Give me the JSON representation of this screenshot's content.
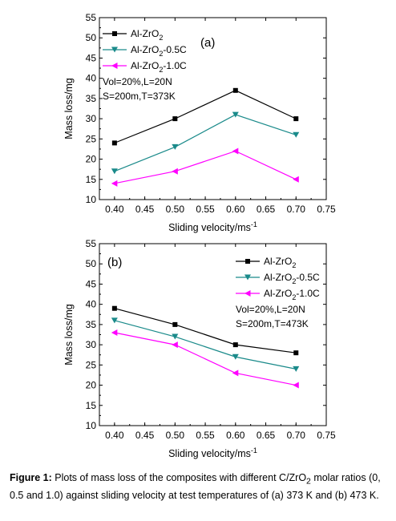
{
  "chart_data": [
    {
      "type": "line",
      "panel_label": "(a)",
      "xlabel_main": "Sliding velocity/ms",
      "xlabel_sup": "-1",
      "ylabel": "Mass loss/mg",
      "xlim": [
        0.375,
        0.75
      ],
      "ylim": [
        10,
        55
      ],
      "xticks": [
        "0.40",
        "0.45",
        "0.50",
        "0.55",
        "0.60",
        "0.65",
        "0.70",
        "0.75"
      ],
      "yticks": [
        "10",
        "15",
        "20",
        "25",
        "30",
        "35",
        "40",
        "45",
        "50",
        "55"
      ],
      "x": [
        0.4,
        0.5,
        0.6,
        0.7
      ],
      "series": [
        {
          "name_main": "Al-ZrO",
          "name_sub": "2",
          "name_tail": "",
          "color": "#000000",
          "marker": "square",
          "values": [
            24,
            30,
            37,
            30
          ]
        },
        {
          "name_main": "Al-ZrO",
          "name_sub": "2",
          "name_tail": "-0.5C",
          "color": "#1a8a8a",
          "marker": "triangle-down",
          "values": [
            17,
            23,
            31,
            26
          ]
        },
        {
          "name_main": "Al-ZrO",
          "name_sub": "2",
          "name_tail": "-1.0C",
          "color": "#ff00ff",
          "marker": "triangle-left",
          "values": [
            14,
            17,
            22,
            15
          ]
        }
      ],
      "annotations": [
        "Vol=20%,L=20N",
        "S=200m,T=373K"
      ],
      "legend_position": "top-left",
      "grid": false
    },
    {
      "type": "line",
      "panel_label": "(b)",
      "xlabel_main": "Sliding velocity/ms",
      "xlabel_sup": "-1",
      "ylabel": "Mass loss/mg",
      "xlim": [
        0.375,
        0.75
      ],
      "ylim": [
        10,
        55
      ],
      "xticks": [
        "0.40",
        "0.45",
        "0.50",
        "0.55",
        "0.60",
        "0.65",
        "0.70",
        "0.75"
      ],
      "yticks": [
        "10",
        "15",
        "20",
        "25",
        "30",
        "35",
        "40",
        "45",
        "50",
        "55"
      ],
      "x": [
        0.4,
        0.5,
        0.6,
        0.7
      ],
      "series": [
        {
          "name_main": "Al-ZrO",
          "name_sub": "2",
          "name_tail": "",
          "color": "#000000",
          "marker": "square",
          "values": [
            39,
            35,
            30,
            28
          ]
        },
        {
          "name_main": "Al-ZrO",
          "name_sub": "2",
          "name_tail": "-0.5C",
          "color": "#1a8a8a",
          "marker": "triangle-down",
          "values": [
            36,
            32,
            27,
            24
          ]
        },
        {
          "name_main": "Al-ZrO",
          "name_sub": "2",
          "name_tail": "-1.0C",
          "color": "#ff00ff",
          "marker": "triangle-left",
          "values": [
            33,
            30,
            23,
            20
          ]
        }
      ],
      "annotations": [
        "Vol=20%,L=20N",
        "S=200m,T=473K"
      ],
      "legend_position": "top-right",
      "grid": false
    }
  ],
  "caption": {
    "label": "Figure 1:",
    "text_part1": " Plots of mass loss of the composites with different C/ZrO",
    "text_sub": "2",
    "text_part2": " molar ratios (0, 0.5 and 1.0) against sliding velocity at test temperatures of (a) 373 K and (b) 473 K."
  }
}
